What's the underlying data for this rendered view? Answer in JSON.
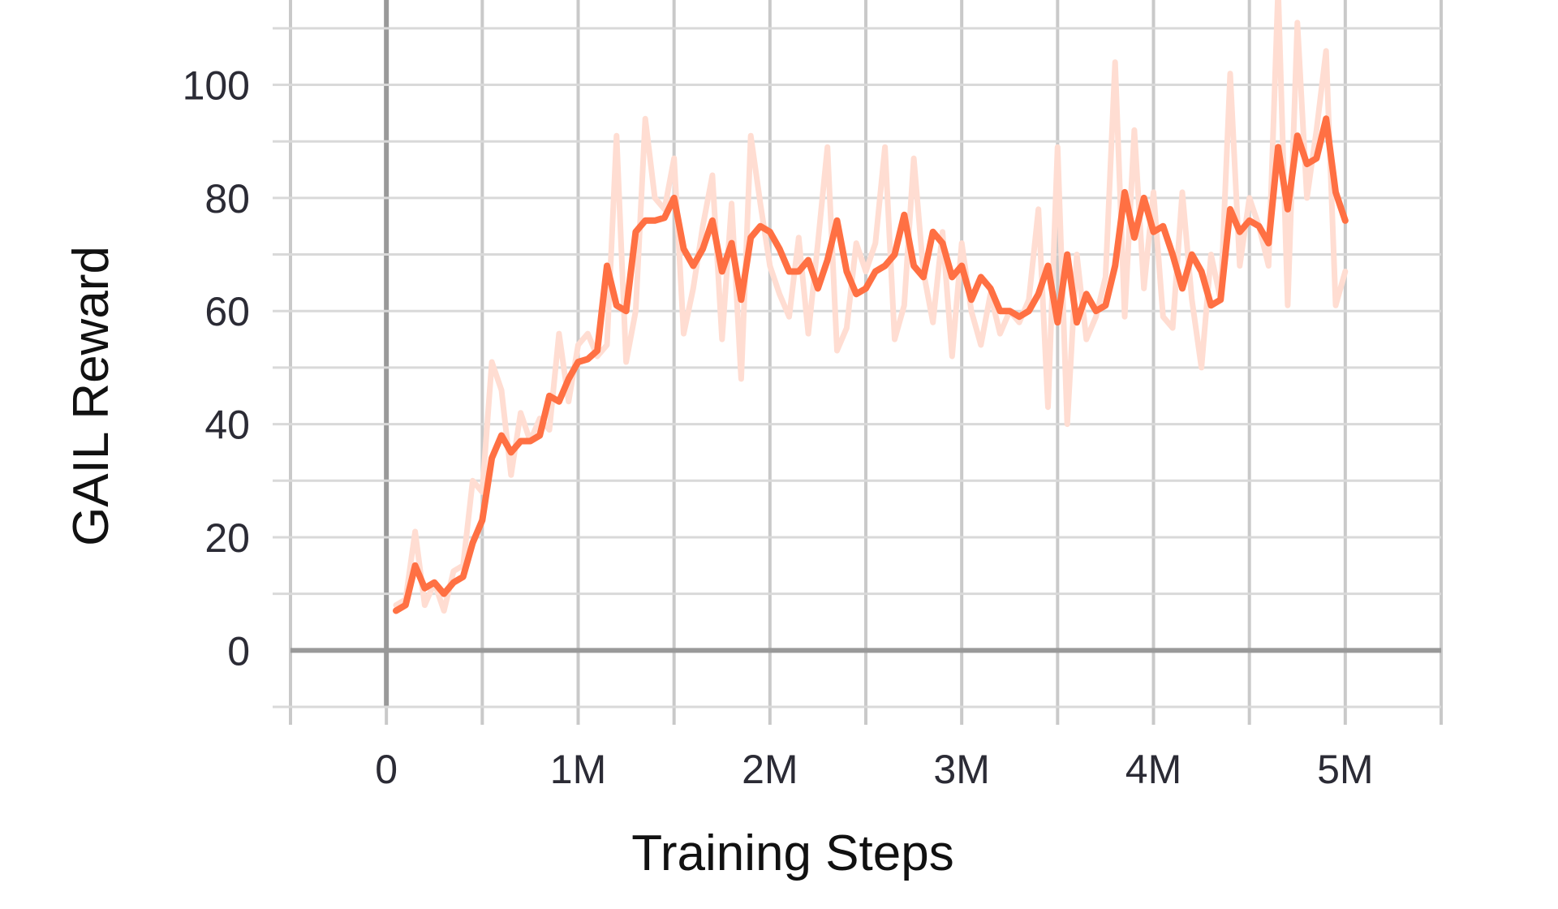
{
  "chart_data": {
    "type": "line",
    "xlabel": "Training Steps",
    "ylabel": "GAIL Reward",
    "xlim": [
      -500000,
      5500000
    ],
    "ylim": [
      -10,
      115
    ],
    "x_ticks": [
      0,
      1000000,
      2000000,
      3000000,
      4000000,
      5000000
    ],
    "x_tick_labels": [
      "0",
      "1M",
      "2M",
      "3M",
      "4M",
      "5M"
    ],
    "y_ticks": [
      0,
      20,
      40,
      60,
      80,
      100
    ],
    "y_tick_labels": [
      "0",
      "20",
      "40",
      "60",
      "80",
      "100"
    ],
    "grid": true,
    "x": [
      50000,
      100000,
      150000,
      200000,
      250000,
      300000,
      350000,
      400000,
      450000,
      500000,
      550000,
      600000,
      650000,
      700000,
      750000,
      800000,
      850000,
      900000,
      950000,
      1000000,
      1050000,
      1100000,
      1150000,
      1200000,
      1250000,
      1300000,
      1350000,
      1400000,
      1450000,
      1500000,
      1550000,
      1600000,
      1650000,
      1700000,
      1750000,
      1800000,
      1850000,
      1900000,
      1950000,
      2000000,
      2050000,
      2100000,
      2150000,
      2200000,
      2250000,
      2300000,
      2350000,
      2400000,
      2450000,
      2500000,
      2550000,
      2600000,
      2650000,
      2700000,
      2750000,
      2800000,
      2850000,
      2900000,
      2950000,
      3000000,
      3050000,
      3100000,
      3150000,
      3200000,
      3250000,
      3300000,
      3350000,
      3400000,
      3450000,
      3500000,
      3550000,
      3600000,
      3650000,
      3700000,
      3750000,
      3800000,
      3850000,
      3900000,
      3950000,
      4000000,
      4050000,
      4100000,
      4150000,
      4200000,
      4250000,
      4300000,
      4350000,
      4400000,
      4450000,
      4500000,
      4550000,
      4600000,
      4650000,
      4700000,
      4750000,
      4800000,
      4850000,
      4900000,
      4950000,
      5000000
    ],
    "series": [
      {
        "role": "raw",
        "color": "#ffddd2",
        "values": [
          8,
          9,
          21,
          8,
          12,
          7,
          14,
          15,
          30,
          28,
          51,
          46,
          31,
          42,
          37,
          41,
          39,
          56,
          44,
          54,
          56,
          52,
          54,
          91,
          51,
          60,
          94,
          80,
          78,
          87,
          56,
          64,
          75,
          84,
          55,
          79,
          48,
          91,
          79,
          68,
          63,
          59,
          73,
          56,
          72,
          89,
          53,
          57,
          72,
          67,
          72,
          89,
          55,
          61,
          87,
          67,
          58,
          74,
          52,
          72,
          60,
          54,
          63,
          56,
          60,
          58,
          62,
          78,
          43,
          89,
          40,
          70,
          55,
          59,
          66,
          104,
          59,
          92,
          64,
          81,
          59,
          57,
          81,
          62,
          50,
          70,
          62,
          102,
          68,
          80,
          75,
          68,
          117,
          61,
          111,
          80,
          92,
          106,
          61,
          67
        ]
      },
      {
        "role": "smoothed",
        "color": "#ff7043",
        "values": [
          7,
          8,
          15,
          11,
          12,
          10,
          12,
          13,
          19,
          23,
          34,
          38,
          35,
          37,
          37,
          38,
          45,
          44,
          48,
          51,
          51.5,
          53,
          68,
          61,
          60,
          74,
          76,
          76,
          76.5,
          80,
          71,
          68,
          71,
          76,
          67,
          72,
          62,
          73,
          75,
          74,
          71,
          67,
          67,
          69,
          64,
          69,
          76,
          67,
          63,
          64,
          67,
          68,
          70,
          77,
          68,
          66,
          74,
          72,
          66,
          68,
          62,
          66,
          64,
          60,
          60,
          59,
          60,
          63,
          68,
          58,
          70,
          58,
          63,
          60,
          61,
          68,
          81,
          73,
          80,
          74,
          75,
          70,
          64,
          70,
          67,
          61,
          62,
          78,
          74,
          76,
          75,
          72,
          89,
          78,
          91,
          86,
          87,
          94,
          81,
          76
        ]
      }
    ]
  }
}
